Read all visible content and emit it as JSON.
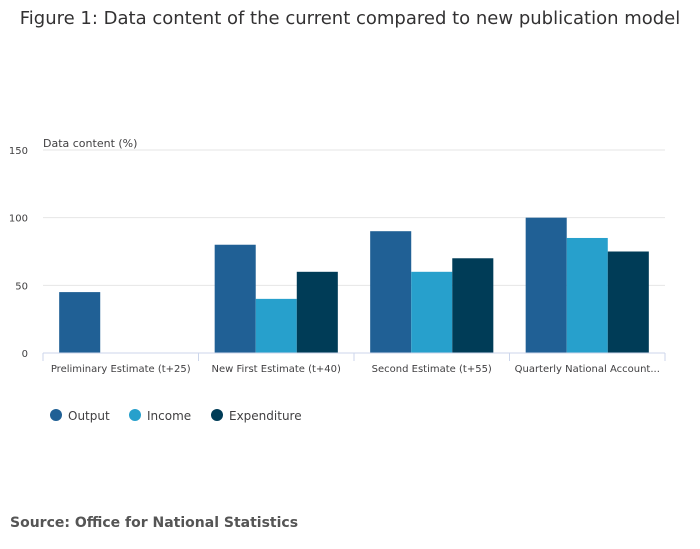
{
  "chart_data": {
    "type": "bar",
    "title": "Figure 1: Data content of the current compared to new publication model",
    "ylabel": "Data content (%)",
    "xlabel": "",
    "ylim": [
      0,
      150
    ],
    "yticks": [
      0,
      50,
      100,
      150
    ],
    "categories": [
      "Preliminary Estimate (t+25)",
      "New First Estimate (t+40)",
      "Second Estimate (t+55)",
      "Quarterly National Account..."
    ],
    "series": [
      {
        "name": "Output",
        "color": "#206095",
        "values": [
          45,
          80,
          90,
          100
        ]
      },
      {
        "name": "Income",
        "color": "#27a0cc",
        "values": [
          0,
          40,
          60,
          85
        ]
      },
      {
        "name": "Expenditure",
        "color": "#003c57",
        "values": [
          0,
          60,
          70,
          75
        ]
      }
    ],
    "legend_position": "bottom-left",
    "grid": true
  },
  "source": "Source: Office for National Statistics"
}
